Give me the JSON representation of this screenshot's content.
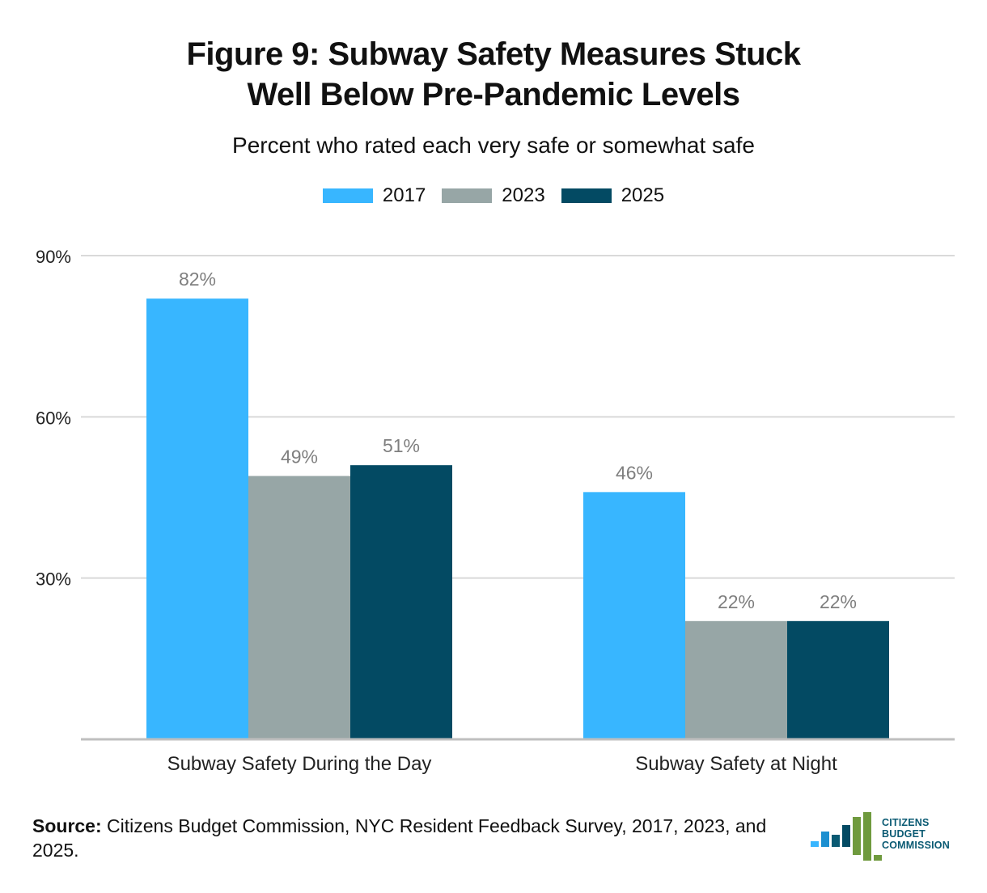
{
  "header": {
    "title_line1": "Figure 9: Subway Safety Measures Stuck",
    "title_line2": "Well Below Pre-Pandemic Levels",
    "subtitle": "Percent who rated each very safe or somewhat safe"
  },
  "colors": {
    "s2017": "#38b6ff",
    "s2023": "#97a6a6",
    "s2025": "#034a63",
    "grid": "#d9d9d9",
    "label": "#7f7f7f"
  },
  "chart_data": {
    "type": "bar",
    "title": "Figure 9: Subway Safety Measures Stuck Well Below Pre-Pandemic Levels",
    "subtitle": "Percent who rated each very safe or somewhat safe",
    "categories": [
      "Subway Safety During the Day",
      "Subway Safety at Night"
    ],
    "series": [
      {
        "name": "2017",
        "values": [
          82,
          46
        ],
        "labels": [
          "82%",
          "46%"
        ]
      },
      {
        "name": "2023",
        "values": [
          49,
          22
        ],
        "labels": [
          "49%",
          "22%"
        ]
      },
      {
        "name": "2025",
        "values": [
          51,
          22
        ],
        "labels": [
          "51%",
          "22%"
        ]
      }
    ],
    "ylim": [
      0,
      90
    ],
    "yticks": [
      30,
      60,
      90
    ],
    "ytick_labels": [
      "30%",
      "60%",
      "90%"
    ],
    "legend": "top-center",
    "grid": true
  },
  "footer": {
    "source_label": "Source:",
    "source_text": " Citizens Budget Commission, NYC Resident Feedback Survey, 2017, 2023, and 2025."
  },
  "logo": {
    "line1": "CITIZENS",
    "line2": "BUDGET",
    "line3": "COMMISSION"
  }
}
